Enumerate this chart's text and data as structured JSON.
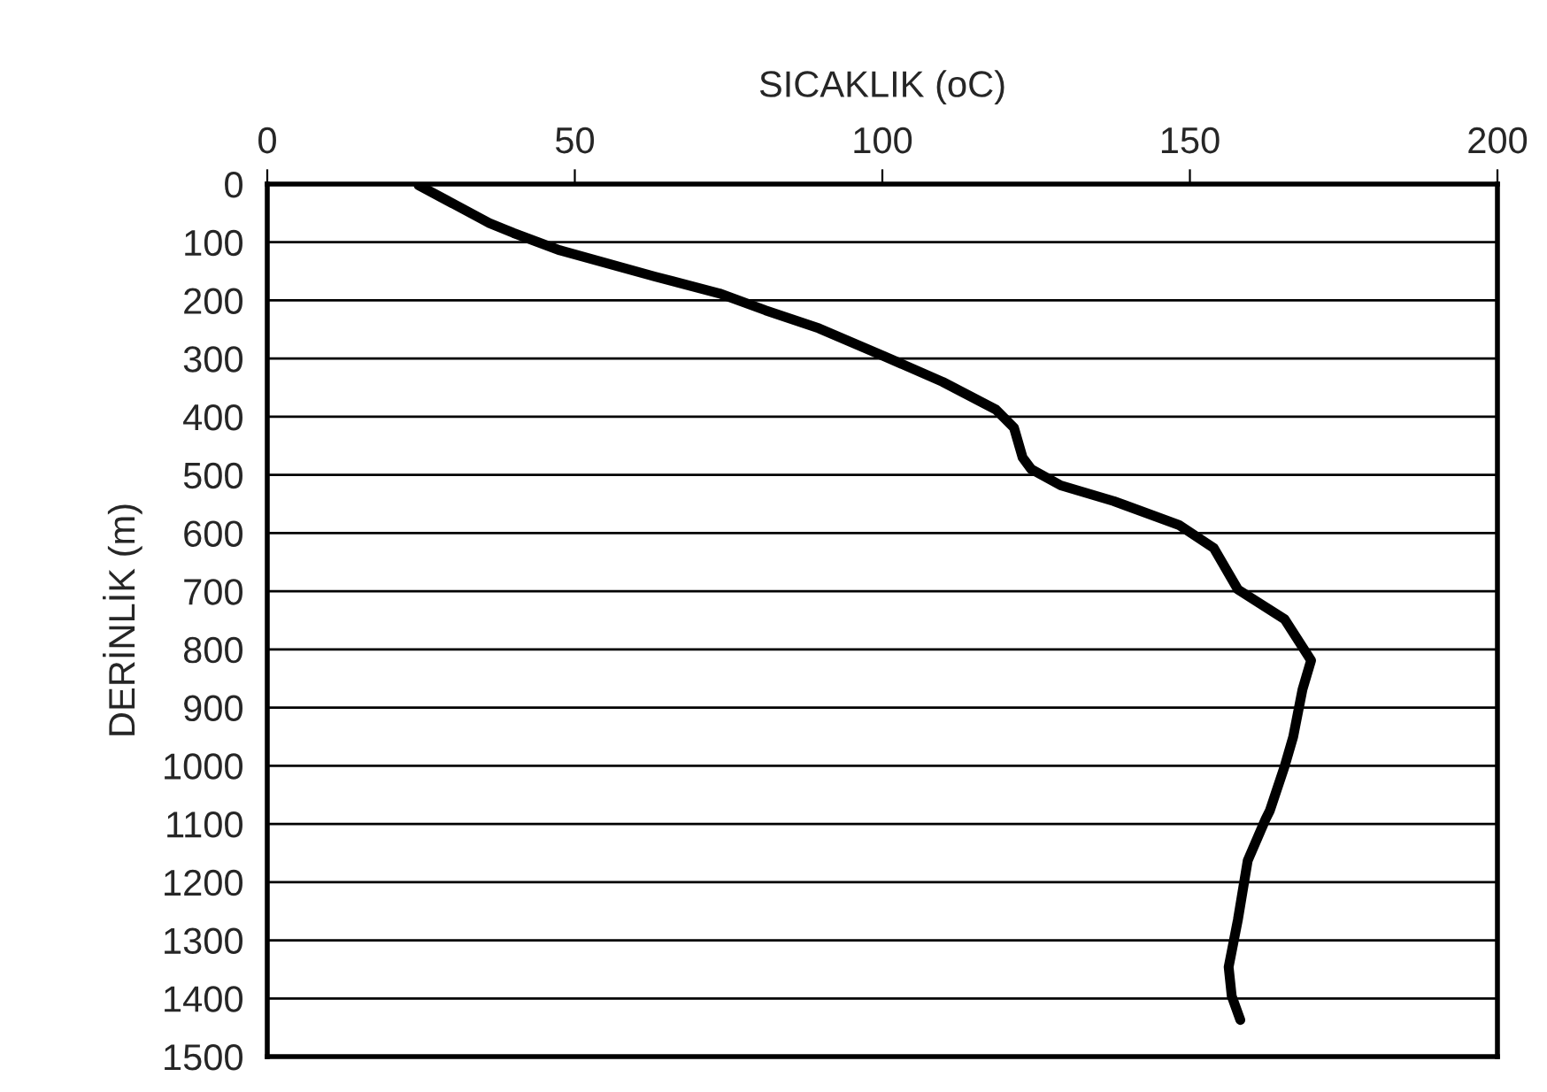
{
  "chart_data": {
    "type": "line",
    "xlabel": "SICAKLIK (oC)",
    "ylabel": "DERİNLİK (m)",
    "xlim": [
      0,
      200
    ],
    "xticks": [
      0,
      50,
      100,
      150,
      200
    ],
    "ylim": [
      1500,
      0
    ],
    "yticks": [
      0,
      100,
      200,
      300,
      400,
      500,
      600,
      700,
      800,
      900,
      1000,
      1100,
      1200,
      1300,
      1400,
      1500
    ],
    "grid": "y",
    "marker": "none",
    "line_style": "solid",
    "series": [
      {
        "color": "#000000",
        "x": [
          24.6,
          36.1,
          40,
          47.6,
          63,
          73.5,
          81,
          89.7,
          100.3,
          109.8,
          118.5,
          121.4,
          122.8,
          124.2,
          129,
          137.6,
          148.2,
          153.9,
          157.8,
          165.4,
          169.7,
          168.3,
          166.8,
          165.4,
          163,
          162.3,
          159.4,
          157.8,
          156.3,
          156.8,
          158.2
        ],
        "values": [
          2,
          67,
          84,
          114,
          159,
          188,
          217,
          248,
          296,
          340,
          388,
          419,
          470,
          490,
          518,
          545,
          586,
          626,
          697,
          748,
          819,
          869,
          950,
          1001,
          1077,
          1092,
          1163,
          1265,
          1346,
          1396,
          1437
        ]
      }
    ]
  }
}
